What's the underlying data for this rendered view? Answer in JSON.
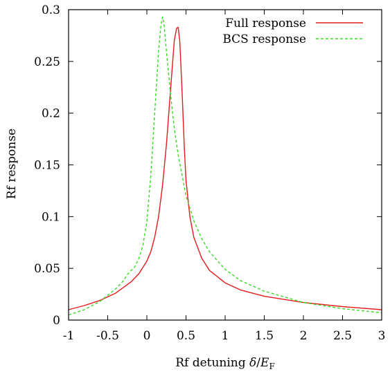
{
  "chart_data": {
    "type": "line",
    "xlabel_text": "Rf detuning ",
    "xlabel_delta": "δ",
    "xlabel_slash": "/",
    "xlabel_E": "E",
    "xlabel_sub": "F",
    "ylabel": "Rf response",
    "xlim": [
      -1,
      3
    ],
    "ylim": [
      0,
      0.3
    ],
    "xticks": [
      "-1",
      "-0.5",
      "0",
      "0.5",
      "1",
      "1.5",
      "2",
      "2.5",
      "3"
    ],
    "yticks": [
      "0",
      "0.05",
      "0.1",
      "0.15",
      "0.2",
      "0.25",
      "0.3"
    ],
    "legend_position": "top-right",
    "grid": false,
    "series": [
      {
        "name": "Full response",
        "color": "#e41a1c",
        "style": "solid",
        "x": [
          -1.0,
          -0.8,
          -0.6,
          -0.4,
          -0.2,
          -0.1,
          0.0,
          0.05,
          0.1,
          0.15,
          0.2,
          0.25,
          0.3,
          0.35,
          0.38,
          0.4,
          0.42,
          0.45,
          0.48,
          0.5,
          0.55,
          0.6,
          0.7,
          0.8,
          1.0,
          1.2,
          1.5,
          2.0,
          2.5,
          3.0
        ],
        "y": [
          0.01,
          0.014,
          0.019,
          0.026,
          0.037,
          0.045,
          0.057,
          0.066,
          0.08,
          0.1,
          0.13,
          0.17,
          0.22,
          0.27,
          0.282,
          0.283,
          0.27,
          0.22,
          0.165,
          0.135,
          0.1,
          0.08,
          0.06,
          0.048,
          0.036,
          0.029,
          0.023,
          0.017,
          0.013,
          0.01
        ]
      },
      {
        "name": "BCS response",
        "color": "#33dd22",
        "style": "dashed",
        "x": [
          -1.0,
          -0.8,
          -0.6,
          -0.4,
          -0.3,
          -0.25,
          -0.2,
          -0.15,
          -0.1,
          -0.05,
          0.0,
          0.05,
          0.1,
          0.15,
          0.18,
          0.2,
          0.22,
          0.25,
          0.3,
          0.35,
          0.4,
          0.5,
          0.6,
          0.7,
          0.8,
          1.0,
          1.2,
          1.5,
          2.0,
          2.5,
          3.0
        ],
        "y": [
          0.005,
          0.01,
          0.018,
          0.03,
          0.038,
          0.044,
          0.048,
          0.052,
          0.06,
          0.072,
          0.095,
          0.14,
          0.2,
          0.26,
          0.285,
          0.293,
          0.285,
          0.26,
          0.22,
          0.185,
          0.16,
          0.12,
          0.096,
          0.079,
          0.066,
          0.049,
          0.038,
          0.028,
          0.017,
          0.011,
          0.007
        ]
      }
    ]
  }
}
